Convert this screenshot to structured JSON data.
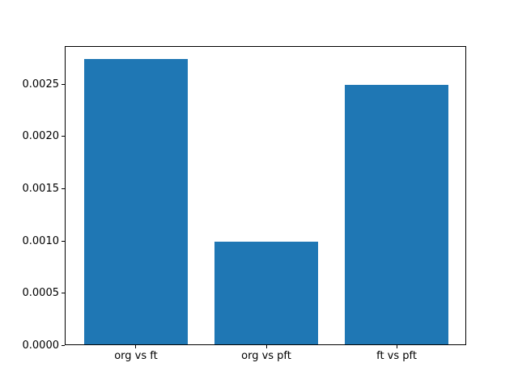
{
  "chart_data": {
    "type": "bar",
    "title": "",
    "xlabel": "",
    "ylabel": "",
    "categories": [
      "org vs ft",
      "org vs pft",
      "ft vs pft"
    ],
    "values": [
      0.00273,
      0.00098,
      0.00248
    ],
    "ytick_labels": [
      "0.0000",
      "0.0005",
      "0.0010",
      "0.0015",
      "0.0020",
      "0.0025"
    ],
    "ytick_values": [
      0.0,
      0.0005,
      0.001,
      0.0015,
      0.002,
      0.0025
    ],
    "ylim": [
      0,
      0.00286
    ],
    "xlim": [
      -0.54,
      2.54
    ],
    "bar_width": 0.8,
    "bar_color": "#1f77b4",
    "axes_background": "#ffffff",
    "spine_color": "#000000",
    "grid": false,
    "legend": null
  }
}
